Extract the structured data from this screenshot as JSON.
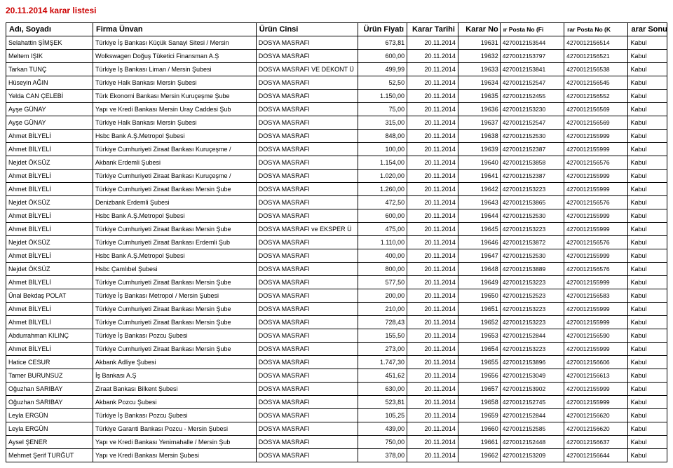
{
  "page_title": "20.11.2014 karar listesi",
  "columns": [
    "Adı, Soyadı",
    "Firma Ünvan",
    "Ürün Cinsi",
    "Ürün Fiyatı",
    "Karar Tarihi",
    "Karar No",
    "ır Posta No (Fi",
    "rar Posta No (K",
    "arar Sonucu"
  ],
  "rows": [
    [
      "Selahattin ŞİMŞEK",
      "Türkiye İş Bankası Küçük Sanayi Sitesi / Mersin",
      "DOSYA MASRAFI",
      "673,81",
      "20.11.2014",
      "19631",
      "4270012153544",
      "4270012156514",
      "Kabul"
    ],
    [
      "Meltem IŞIK",
      "Wolkswagen Doğuş Tüketici Finansman A.Ş",
      "DOSYA MASRAFI",
      "600,00",
      "20.11.2014",
      "19632",
      "4270012153797",
      "4270012156521",
      "Kabul"
    ],
    [
      "Tarkan TUNÇ",
      "Türkiye İş Bankası Liman / Mersin Şubesi",
      "DOSYA MASRAFI VE DEKONT Ü",
      "499,99",
      "20.11.2014",
      "19633",
      "4270012153841",
      "4270012156538",
      "Kabul"
    ],
    [
      "Hüseyin AĞIN",
      "Türkiye Halk Bankası Mersin Şubesi",
      "DOSYA MASRAFI",
      "52,50",
      "20.11.2014",
      "19634",
      "4270012152547",
      "4270012156545",
      "Kabul"
    ],
    [
      "Yelda CAN ÇELEBİ",
      "Türk Ekonomi Bankası Mersin Kuruçeşme Şube",
      "DOSYA MASRAFI",
      "1.150,00",
      "20.11.2014",
      "19635",
      "4270012152455",
      "4270012156552",
      "Kabul"
    ],
    [
      "Ayşe GÜNAY",
      "Yapı ve Kredi Bankası Mersin Uray Caddesi Şub",
      "DOSYA MASRAFI",
      "75,00",
      "20.11.2014",
      "19636",
      "4270012153230",
      "4270012156569",
      "Kabul"
    ],
    [
      "Ayşe GÜNAY",
      "Türkiye Halk Bankası Mersin Şubesi",
      "DOSYA MASRAFI",
      "315,00",
      "20.11.2014",
      "19637",
      "4270012152547",
      "4270012156569",
      "Kabul"
    ],
    [
      "Ahmet BİLYELİ",
      "Hsbc Bank A.Ş.Metropol Şubesi",
      "DOSYA MASRAFI",
      "848,00",
      "20.11.2014",
      "19638",
      "4270012152530",
      "4270012155999",
      "Kabul"
    ],
    [
      "Ahmet BİLYELİ",
      "Türkiye Cumhuriyeti Ziraat Bankası Kuruçeşme /",
      "DOSYA MASRAFI",
      "100,00",
      "20.11.2014",
      "19639",
      "4270012152387",
      "4270012155999",
      "Kabul"
    ],
    [
      "Nejdet ÖKSÜZ",
      "Akbank Erdemli Şubesi",
      "DOSYA MASRAFI",
      "1.154,00",
      "20.11.2014",
      "19640",
      "4270012153858",
      "4270012156576",
      "Kabul"
    ],
    [
      "Ahmet BİLYELİ",
      "Türkiye Cumhuriyeti Ziraat Bankası Kuruçeşme /",
      "DOSYA MASRAFI",
      "1.020,00",
      "20.11.2014",
      "19641",
      "4270012152387",
      "4270012155999",
      "Kabul"
    ],
    [
      "Ahmet BİLYELİ",
      "Türkiye Cumhuriyeti Ziraat Bankası Mersin Şube",
      "DOSYA MASRAFI",
      "1.260,00",
      "20.11.2014",
      "19642",
      "4270012153223",
      "4270012155999",
      "Kabul"
    ],
    [
      "Nejdet ÖKSÜZ",
      "Denizbank Erdemli Şubesi",
      "DOSYA MASRAFI",
      "472,50",
      "20.11.2014",
      "19643",
      "4270012153865",
      "4270012156576",
      "Kabul"
    ],
    [
      "Ahmet BİLYELİ",
      "Hsbc Bank A.Ş.Metropol Şubesi",
      "DOSYA MASRAFI",
      "600,00",
      "20.11.2014",
      "19644",
      "4270012152530",
      "4270012155999",
      "Kabul"
    ],
    [
      "Ahmet BİLYELİ",
      "Türkiye Cumhuriyeti Ziraat Bankası Mersin Şube",
      "DOSYA MASRAFI ve EKSPER Ü",
      "475,00",
      "20.11.2014",
      "19645",
      "4270012153223",
      "4270012155999",
      "Kabul"
    ],
    [
      "Nejdet ÖKSÜZ",
      "Türkiye Cumhuriyeti Ziraat Bankası Erdemli Şub",
      "DOSYA MASRAFI",
      "1.110,00",
      "20.11.2014",
      "19646",
      "4270012153872",
      "4270012156576",
      "Kabul"
    ],
    [
      "Ahmet BİLYELİ",
      "Hsbc Bank A.Ş.Metropol Şubesi",
      "DOSYA MASRAFI",
      "400,00",
      "20.11.2014",
      "19647",
      "4270012152530",
      "4270012155999",
      "Kabul"
    ],
    [
      "Nejdet ÖKSÜZ",
      "Hsbc Çamlıbel Şubesi",
      "DOSYA MASRAFI",
      "800,00",
      "20.11.2014",
      "19648",
      "4270012153889",
      "4270012156576",
      "Kabul"
    ],
    [
      "Ahmet BİLYELİ",
      "Türkiye Cumhuriyeti Ziraat Bankası Mersin Şube",
      "DOSYA MASRAFI",
      "577,50",
      "20.11.2014",
      "19649",
      "4270012153223",
      "4270012155999",
      "Kabul"
    ],
    [
      "Ünal Bekdaş POLAT",
      "Türkiye İş Bankası Metropol / Mersin Şubesi",
      "DOSYA MASRAFI",
      "200,00",
      "20.11.2014",
      "19650",
      "4270012152523",
      "4270012156583",
      "Kabul"
    ],
    [
      "Ahmet BİLYELİ",
      "Türkiye Cumhuriyeti Ziraat Bankası Mersin Şube",
      "DOSYA MASRAFI",
      "210,00",
      "20.11.2014",
      "19651",
      "4270012153223",
      "4270012155999",
      "Kabul"
    ],
    [
      "Ahmet BİLYELİ",
      "Türkiye Cumhuriyeti Ziraat Bankası Mersin Şube",
      "DOSYA MASRAFI",
      "728,43",
      "20.11.2014",
      "19652",
      "4270012153223",
      "4270012155999",
      "Kabul"
    ],
    [
      "Abdurrahman KILINÇ",
      "Türkiye İş Bankası Pozcu Şubesi",
      "DOSYA MASRAFI",
      "155,50",
      "20.11.2014",
      "19653",
      "4270012152844",
      "4270012156590",
      "Kabul"
    ],
    [
      "Ahmet BİLYELİ",
      "Türkiye Cumhuriyeti Ziraat Bankası Mersin Şube",
      "DOSYA MASRAFI",
      "273,00",
      "20.11.2014",
      "19654",
      "4270012153223",
      "4270012155999",
      "Kabul"
    ],
    [
      "Hatice CESUR",
      "Akbank Adliye Şubesi",
      "DOSYA MASRAFI",
      "1.747,30",
      "20.11.2014",
      "19655",
      "4270012153896",
      "4270012156606",
      "Kabul"
    ],
    [
      "Tamer BURUNSUZ",
      "İş Bankası A.Ş",
      "DOSYA MASRAFI",
      "451,62",
      "20.11.2014",
      "19656",
      "4270012153049",
      "4270012156613",
      "Kabul"
    ],
    [
      "Oğuzhan SARIBAY",
      "Ziraat Bankası Bilkent Şubesi",
      "DOSYA MASRAFI",
      "630,00",
      "20.11.2014",
      "19657",
      "4270012153902",
      "4270012155999",
      "Kabul"
    ],
    [
      "Oğuzhan SARIBAY",
      "Akbank Pozcu Şubesi",
      "DOSYA MASRAFI",
      "523,81",
      "20.11.2014",
      "19658",
      "4270012152745",
      "4270012155999",
      "Kabul"
    ],
    [
      "Leyla ERGÜN",
      "Türkiye İş Bankası Pozcu Şubesi",
      "DOSYA MASRAFI",
      "105,25",
      "20.11.2014",
      "19659",
      "4270012152844",
      "4270012156620",
      "Kabul"
    ],
    [
      "Leyla ERGÜN",
      "Türkiye Garanti Bankası Pozcu - Mersin Şubesi",
      "DOSYA MASRAFI",
      "439,00",
      "20.11.2014",
      "19660",
      "4270012152585",
      "4270012156620",
      "Kabul"
    ],
    [
      "Aysel ŞENER",
      "Yapı ve Kredi Bankası Yenimahalle / Mersin Şub",
      "DOSYA MASRAFI",
      "750,00",
      "20.11.2014",
      "19661",
      "4270012152448",
      "4270012156637",
      "Kabul"
    ],
    [
      "Mehmet Şerif TURĞUT",
      "Yapı ve Kredi Bankası Mersin Şubesi",
      "DOSYA MASRAFI",
      "378,00",
      "20.11.2014",
      "19662",
      "4270012153209",
      "4270012156644",
      "Kabul"
    ]
  ]
}
